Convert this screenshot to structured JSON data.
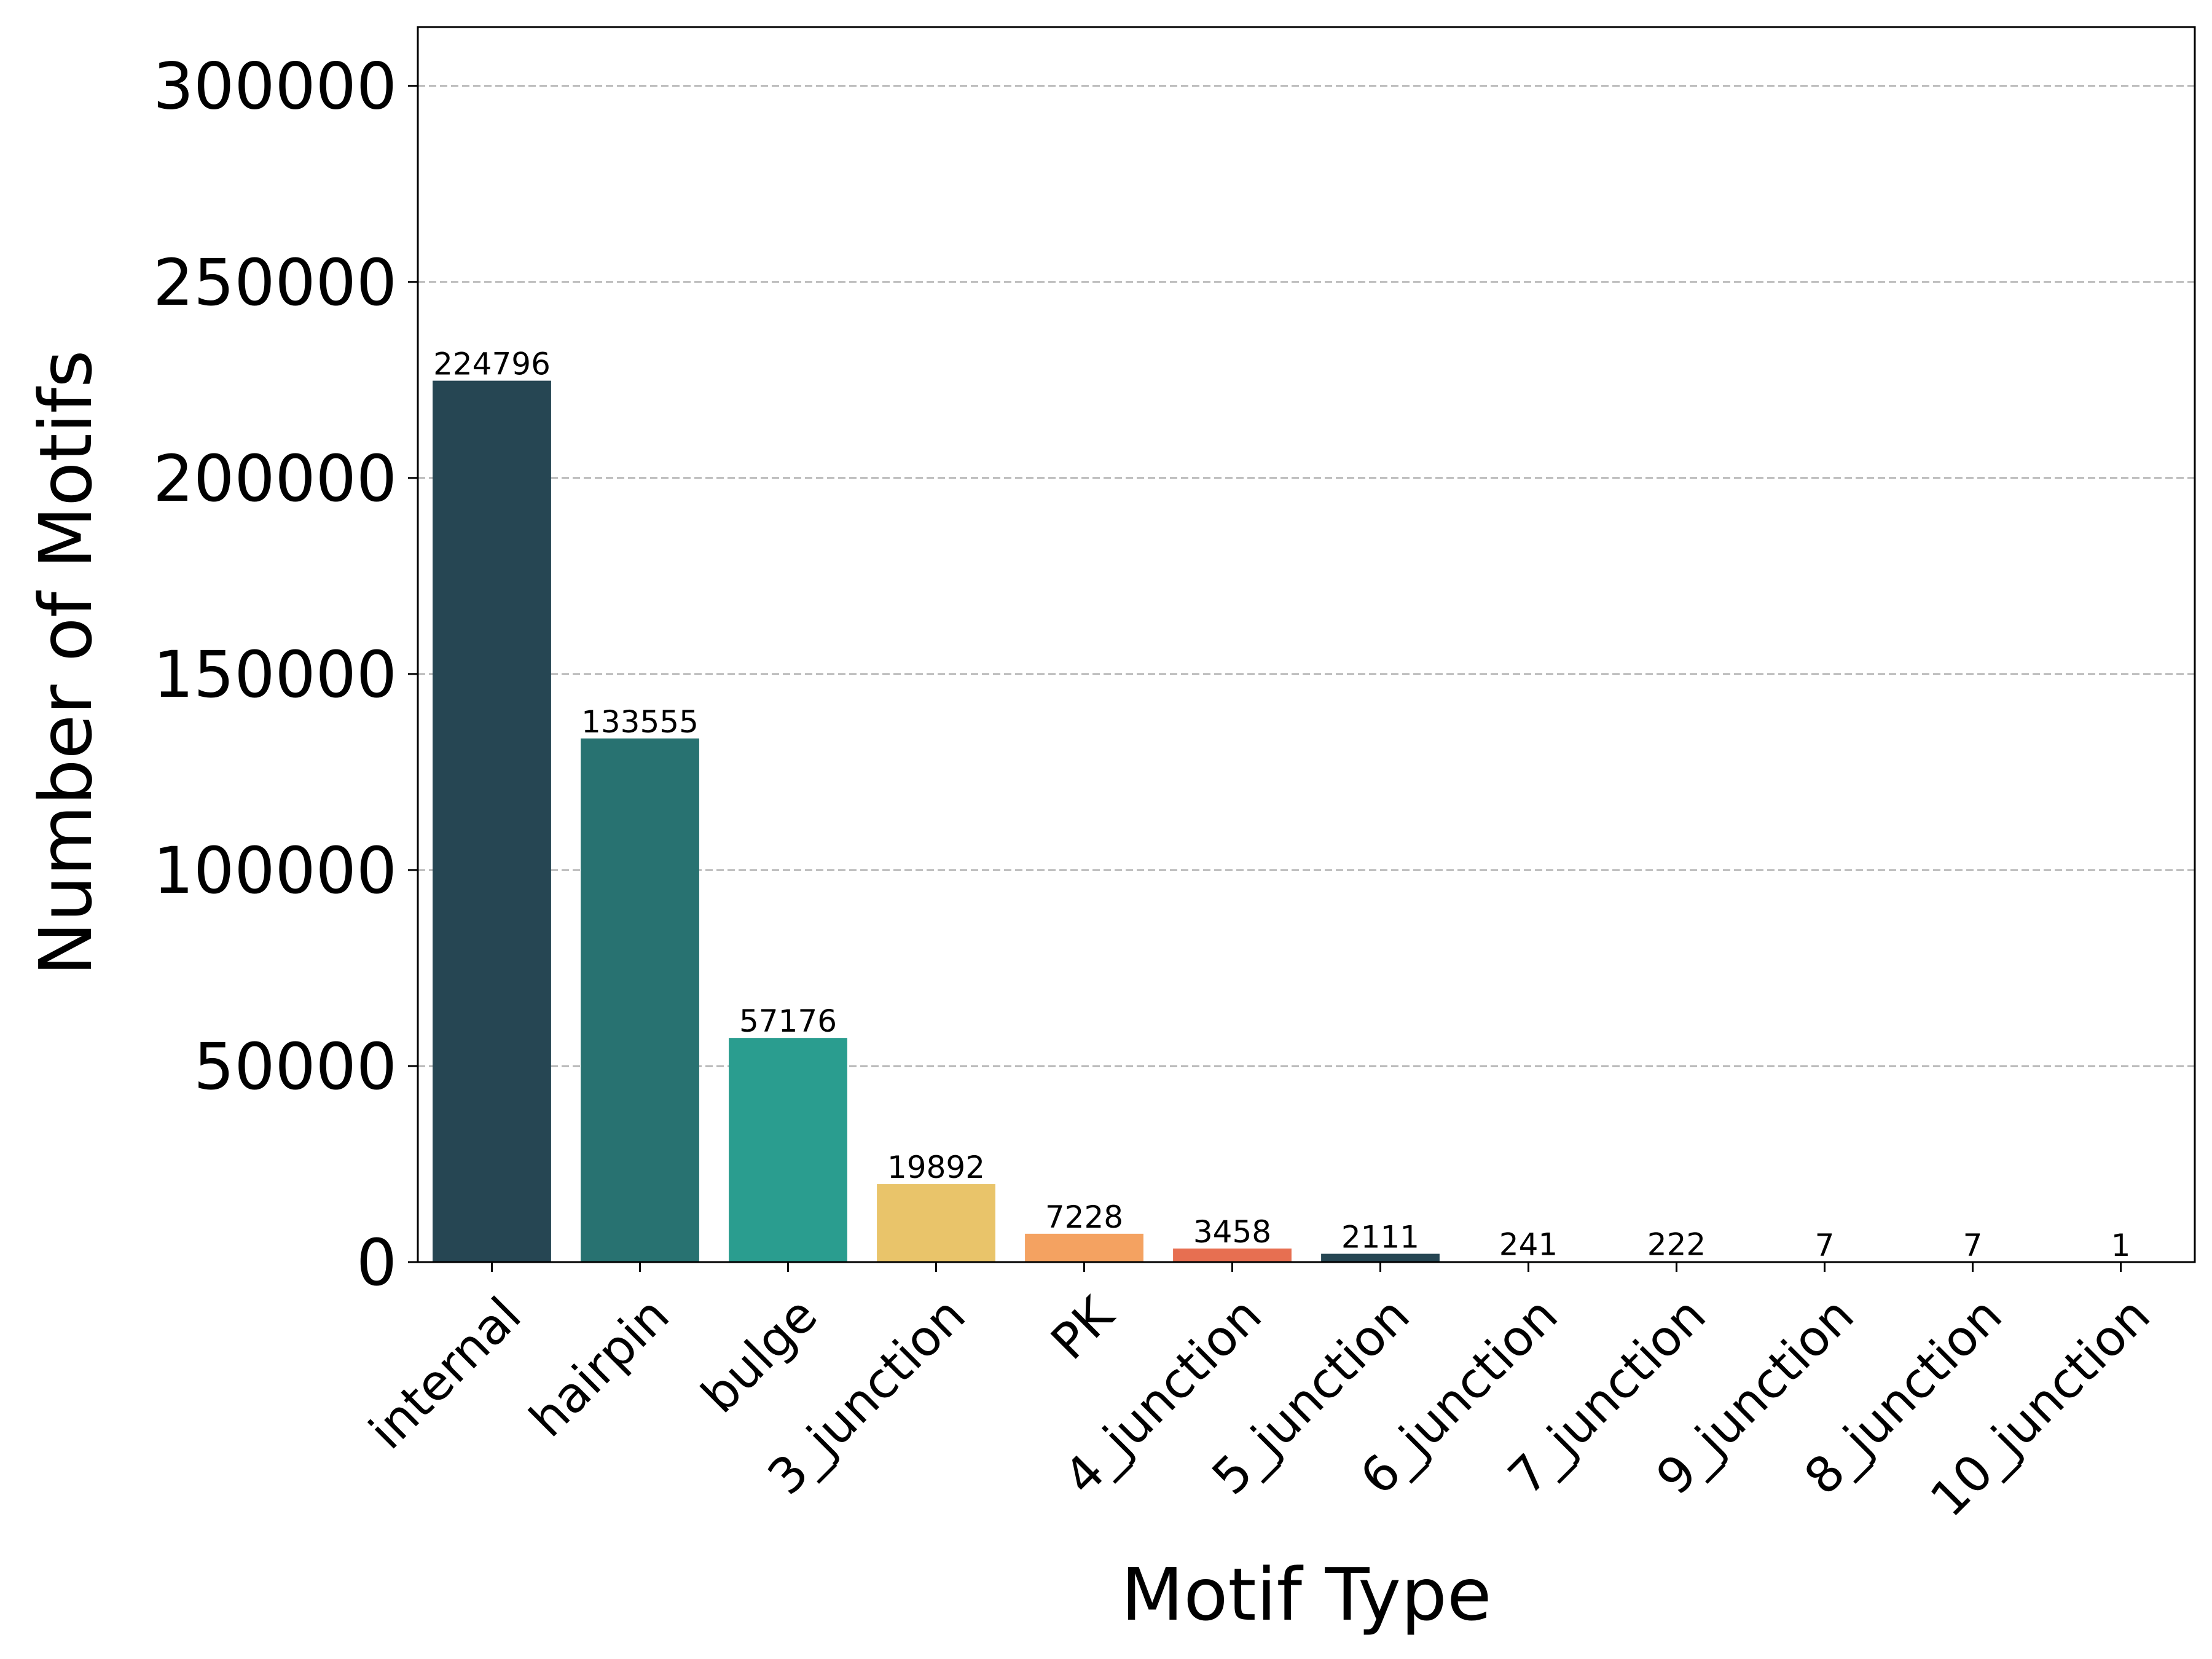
{
  "chart_data": {
    "type": "bar",
    "title": "",
    "xlabel": "Motif Type",
    "ylabel": "Number of Motifs",
    "categories": [
      "internal",
      "hairpin",
      "bulge",
      "3_junction",
      "PK",
      "4_junction",
      "5_junction",
      "6_junction",
      "7_junction",
      "9_junction",
      "8_junction",
      "10_junction"
    ],
    "values": [
      224796,
      133555,
      57176,
      19892,
      7228,
      3458,
      2111,
      241,
      222,
      7,
      7,
      1
    ],
    "value_labels": [
      "224796",
      "133555",
      "57176",
      "19892",
      "7228",
      "3458",
      "2111",
      "241",
      "222",
      "7",
      "7",
      "1"
    ],
    "colors": [
      "#264653",
      "#287271",
      "#2a9d8f",
      "#e9c46a",
      "#f4a261",
      "#e76f51",
      "#264653",
      "#287271",
      "#2a9d8f",
      "#e9c46a",
      "#f4a261",
      "#e76f51"
    ],
    "ylim": [
      0,
      315000
    ],
    "yticks": [
      0,
      50000,
      100000,
      150000,
      200000,
      250000,
      300000
    ],
    "ytick_labels": [
      "0",
      "50000",
      "100000",
      "150000",
      "200000",
      "250000",
      "300000"
    ],
    "grid": "y-dashed",
    "legend": "none"
  }
}
